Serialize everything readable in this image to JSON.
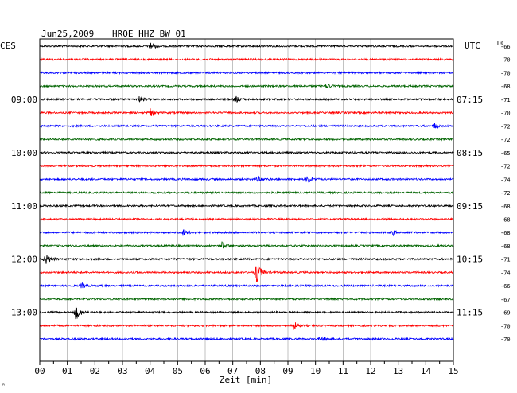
{
  "header": {
    "date": "Jun25,2009",
    "station": "HROE HHZ BW 01",
    "left_tz": "CES",
    "right_tz": "UTC",
    "dc_label": "DC"
  },
  "footer": {
    "xlabel": "Zeit [min]",
    "corner_mark": "ᴬ"
  },
  "colors": {
    "cycle": [
      "#000000",
      "#ff0000",
      "#0000ff",
      "#006400"
    ],
    "grid": "#999999",
    "frame": "#000000"
  },
  "chart_data": {
    "type": "line",
    "xlabel": "Zeit [min]",
    "xlim": [
      0,
      15
    ],
    "x_ticks": [
      "00",
      "01",
      "02",
      "03",
      "04",
      "05",
      "06",
      "07",
      "08",
      "09",
      "10",
      "11",
      "12",
      "13",
      "14",
      "15"
    ],
    "trace_count": 23,
    "left_hour_labels": [
      {
        "trace": 4,
        "label": "09:00"
      },
      {
        "trace": 8,
        "label": "10:00"
      },
      {
        "trace": 12,
        "label": "11:00"
      },
      {
        "trace": 16,
        "label": "12:00"
      },
      {
        "trace": 20,
        "label": "13:00"
      }
    ],
    "right_time_labels": [
      {
        "trace": 4,
        "label": "07:15"
      },
      {
        "trace": 8,
        "label": "08:15"
      },
      {
        "trace": 12,
        "label": "09:15"
      },
      {
        "trace": 16,
        "label": "10:15"
      },
      {
        "trace": 20,
        "label": "11:15"
      }
    ],
    "dc_offsets": [
      "-66",
      "-70",
      "-70",
      "-68",
      "-71",
      "-70",
      "-72",
      "-72",
      "-65",
      "-72",
      "-74",
      "-72",
      "-68",
      "-68",
      "-68",
      "-68",
      "-71",
      "-74",
      "-66",
      "-67",
      "-69",
      "-70",
      "-70"
    ],
    "events": [
      {
        "trace": 0,
        "minute": 4.0,
        "amp": 0.6
      },
      {
        "trace": 3,
        "minute": 10.4,
        "amp": 0.5
      },
      {
        "trace": 4,
        "minute": 3.6,
        "amp": 0.4
      },
      {
        "trace": 4,
        "minute": 7.1,
        "amp": 0.5
      },
      {
        "trace": 5,
        "minute": 4.0,
        "amp": 0.6
      },
      {
        "trace": 6,
        "minute": 14.3,
        "amp": 0.5
      },
      {
        "trace": 10,
        "minute": 9.7,
        "amp": 0.7
      },
      {
        "trace": 10,
        "minute": 7.9,
        "amp": 0.4
      },
      {
        "trace": 14,
        "minute": 5.2,
        "amp": 0.5
      },
      {
        "trace": 14,
        "minute": 12.8,
        "amp": 0.4
      },
      {
        "trace": 15,
        "minute": 6.6,
        "amp": 0.6
      },
      {
        "trace": 16,
        "minute": 0.2,
        "amp": 1.0
      },
      {
        "trace": 17,
        "minute": 7.85,
        "amp": 2.0
      },
      {
        "trace": 18,
        "minute": 1.5,
        "amp": 0.4
      },
      {
        "trace": 20,
        "minute": 1.3,
        "amp": 1.4
      },
      {
        "trace": 21,
        "minute": 9.2,
        "amp": 0.7
      },
      {
        "trace": 22,
        "minute": 10.2,
        "amp": 0.4
      }
    ]
  }
}
